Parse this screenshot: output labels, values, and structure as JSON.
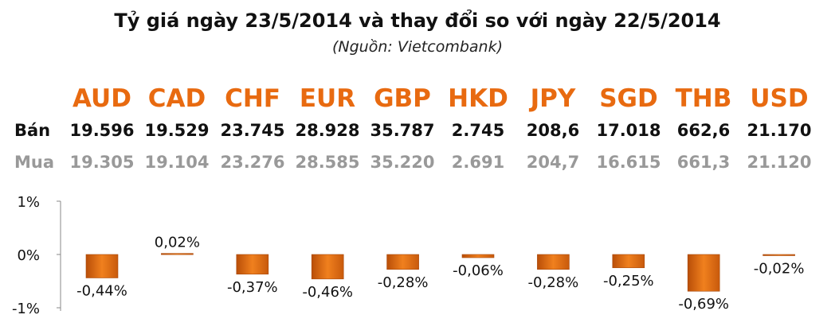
{
  "header": {
    "title": "Tỷ giá ngày 23/5/2014 và thay đổi so với ngày 22/5/2014",
    "source": "(Nguồn: Vietcombank)"
  },
  "rates": {
    "sell_label": "Bán",
    "buy_label": "Mua",
    "currencies": [
      "AUD",
      "CAD",
      "CHF",
      "EUR",
      "GBP",
      "HKD",
      "JPY",
      "SGD",
      "THB",
      "USD"
    ],
    "sell": [
      "19.596",
      "19.529",
      "23.745",
      "28.928",
      "35.787",
      "2.745",
      "208,6",
      "17.018",
      "662,6",
      "21.170"
    ],
    "buy": [
      "19.305",
      "19.104",
      "23.276",
      "28.585",
      "35.220",
      "2.691",
      "204,7",
      "16.615",
      "661,3",
      "21.120"
    ]
  },
  "colors": {
    "accent": "#e86a10",
    "sell_text": "#111111",
    "buy_text": "#999999"
  },
  "chart_data": {
    "type": "bar",
    "categories": [
      "AUD",
      "CAD",
      "CHF",
      "EUR",
      "GBP",
      "HKD",
      "JPY",
      "SGD",
      "THB",
      "USD"
    ],
    "values": [
      -0.44,
      0.02,
      -0.37,
      -0.46,
      -0.28,
      -0.06,
      -0.28,
      -0.25,
      -0.69,
      -0.02
    ],
    "data_labels": [
      "-0,44%",
      "0,02%",
      "-0,37%",
      "-0,46%",
      "-0,28%",
      "-0,06%",
      "-0,28%",
      "-0,25%",
      "-0,69%",
      "-0,02%"
    ],
    "ylim": [
      -1,
      1
    ],
    "yticks": [
      1,
      0,
      -1
    ],
    "ytick_labels": [
      "1%",
      "0%",
      "-1%"
    ],
    "grid": false,
    "bar_color": "#e8731c"
  }
}
